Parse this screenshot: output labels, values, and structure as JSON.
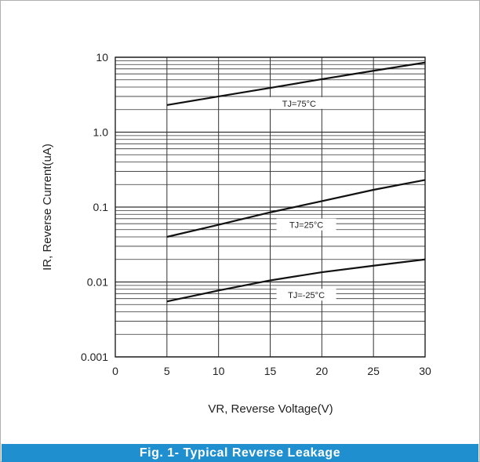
{
  "caption": "Fig. 1- Typical Reverse Leakage",
  "colors": {
    "caption_bg": "#1f8fd0",
    "grid": "#333333",
    "curve": "#111111"
  },
  "chart_data": {
    "type": "line",
    "title": "",
    "xlabel": "VR, Reverse Voltage(V)",
    "ylabel": "IR, Reverse Current(uA)",
    "xlim": [
      0,
      30
    ],
    "ylim": [
      0.001,
      10
    ],
    "y_scale": "log",
    "grid": true,
    "x_ticks": [
      0,
      5,
      10,
      15,
      20,
      25,
      30
    ],
    "x_tick_labels": [
      "0",
      "5",
      "10",
      "15",
      "20",
      "25",
      "30"
    ],
    "y_ticks": [
      0.001,
      0.01,
      0.1,
      1.0,
      10
    ],
    "y_tick_labels": [
      "0.001",
      "0.01",
      "0.1",
      "1.0",
      "10"
    ],
    "series": [
      {
        "name": "TJ=75°C",
        "x": [
          5,
          10,
          15,
          20,
          25,
          30
        ],
        "y": [
          2.3,
          3.0,
          3.9,
          5.1,
          6.6,
          8.5
        ]
      },
      {
        "name": "TJ=25°C",
        "x": [
          5,
          10,
          15,
          20,
          25,
          30
        ],
        "y": [
          0.04,
          0.058,
          0.085,
          0.12,
          0.17,
          0.23
        ]
      },
      {
        "name": "TJ=-25°C",
        "x": [
          5,
          10,
          15,
          20,
          25,
          30
        ],
        "y": [
          0.0055,
          0.0077,
          0.0105,
          0.0135,
          0.0165,
          0.02
        ]
      }
    ]
  }
}
